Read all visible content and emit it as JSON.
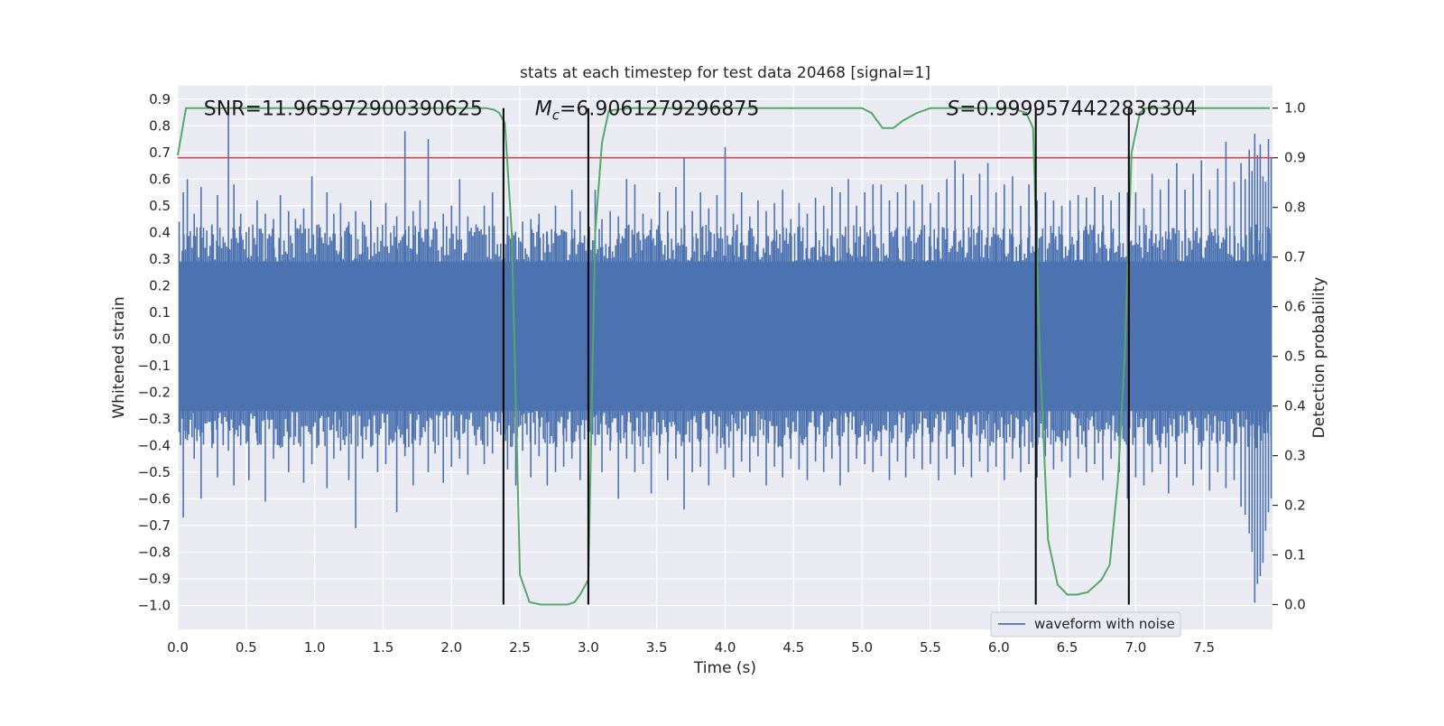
{
  "chart_data": {
    "type": "line",
    "title": "stats at each timestep for test data 20468 [signal=1]",
    "xlabel": "Time (s)",
    "ylabel": "Whitened strain",
    "y2label": "Detection probability",
    "xlim": [
      0.0,
      8.0
    ],
    "ylim": [
      -1.09,
      0.95
    ],
    "y2lim": [
      -0.05,
      1.045
    ],
    "xticks": [
      "0.0",
      "0.5",
      "1.0",
      "1.5",
      "2.0",
      "2.5",
      "3.0",
      "3.5",
      "4.0",
      "4.5",
      "5.0",
      "5.5",
      "6.0",
      "6.5",
      "7.0",
      "7.5"
    ],
    "yticks": [
      "0.9",
      "0.8",
      "0.7",
      "0.6",
      "0.5",
      "0.4",
      "0.3",
      "0.2",
      "0.1",
      "0.0",
      "-0.1",
      "-0.2",
      "-0.3",
      "-0.4",
      "-0.5",
      "-0.6",
      "-0.7",
      "-0.8",
      "-0.9",
      "-1.0"
    ],
    "y2ticks": [
      "1.0",
      "0.9",
      "0.8",
      "0.7",
      "0.6",
      "0.5",
      "0.4",
      "0.3",
      "0.2",
      "0.1",
      "0.0"
    ],
    "grid": true,
    "legend": {
      "placement": "lower-right",
      "entries": [
        "waveform with noise"
      ]
    },
    "annotations": {
      "snr": "SNR=11.965972900390625",
      "mc_prefix": "M",
      "mc_sub": "c",
      "mc_value": "=6.9061279296875",
      "s_prefix": "S",
      "s_value": "=0.9999574422836304"
    },
    "threshold": {
      "axis": "y2",
      "value": 0.9,
      "color": "#c44e52"
    },
    "vertical_lines": [
      2.38,
      3.0,
      6.27,
      6.95
    ],
    "vertical_lines_range_y2": [
      0.0,
      1.0
    ],
    "series": [
      {
        "name": "waveform with noise",
        "axis": "y",
        "color": "#4c72b0",
        "style": "dense-noise",
        "core_envelope": [
          -0.27,
          0.29
        ],
        "spikes": [
          [
            0.01,
            0.44,
            -0.35
          ],
          [
            0.04,
            0.55,
            -0.67
          ],
          [
            0.07,
            0.6,
            -0.38
          ],
          [
            0.12,
            0.47,
            -0.45
          ],
          [
            0.17,
            0.57,
            -0.6
          ],
          [
            0.25,
            0.43,
            -0.41
          ],
          [
            0.29,
            0.54,
            -0.52
          ],
          [
            0.37,
            0.86,
            -0.42
          ],
          [
            0.41,
            0.58,
            -0.55
          ],
          [
            0.46,
            0.47,
            -0.4
          ],
          [
            0.52,
            0.42,
            -0.53
          ],
          [
            0.58,
            0.52,
            -0.38
          ],
          [
            0.64,
            0.47,
            -0.61
          ],
          [
            0.7,
            0.45,
            -0.45
          ],
          [
            0.75,
            0.54,
            -0.41
          ],
          [
            0.81,
            0.48,
            -0.5
          ],
          [
            0.86,
            0.45,
            -0.35
          ],
          [
            0.92,
            0.49,
            -0.54
          ],
          [
            0.98,
            0.61,
            -0.47
          ],
          [
            1.03,
            0.43,
            -0.4
          ],
          [
            1.09,
            0.55,
            -0.56
          ],
          [
            1.14,
            0.47,
            -0.45
          ],
          [
            1.19,
            0.51,
            -0.42
          ],
          [
            1.25,
            0.44,
            -0.53
          ],
          [
            1.3,
            0.48,
            -0.71
          ],
          [
            1.35,
            0.44,
            -0.45
          ],
          [
            1.41,
            0.52,
            -0.4
          ],
          [
            1.46,
            0.42,
            -0.5
          ],
          [
            1.52,
            0.51,
            -0.47
          ],
          [
            1.6,
            0.46,
            -0.65
          ],
          [
            1.66,
            0.78,
            -0.44
          ],
          [
            1.72,
            0.48,
            -0.55
          ],
          [
            1.77,
            0.52,
            -0.4
          ],
          [
            1.83,
            0.75,
            -0.5
          ],
          [
            1.88,
            0.44,
            -0.43
          ],
          [
            1.94,
            0.47,
            -0.54
          ],
          [
            2.0,
            0.5,
            -0.48
          ],
          [
            2.06,
            0.6,
            -0.45
          ],
          [
            2.12,
            0.46,
            -0.51
          ],
          [
            2.18,
            0.43,
            -0.4
          ],
          [
            2.24,
            0.5,
            -0.47
          ],
          [
            2.3,
            0.55,
            -0.43
          ],
          [
            2.36,
            0.33,
            -0.36
          ],
          [
            2.41,
            0.46,
            -0.49
          ],
          [
            2.47,
            0.37,
            -0.55
          ],
          [
            2.52,
            0.44,
            -0.42
          ],
          [
            2.58,
            0.45,
            -0.52
          ],
          [
            2.64,
            0.47,
            -0.44
          ],
          [
            2.7,
            0.4,
            -0.55
          ],
          [
            2.76,
            0.5,
            -0.5
          ],
          [
            2.82,
            0.4,
            -0.48
          ],
          [
            2.88,
            0.56,
            -0.45
          ],
          [
            2.94,
            0.48,
            -0.53
          ],
          [
            3.0,
            0.64,
            -0.61
          ],
          [
            3.05,
            0.56,
            -0.4
          ],
          [
            3.1,
            0.45,
            -0.5
          ],
          [
            3.16,
            0.48,
            -0.42
          ],
          [
            3.22,
            0.46,
            -0.6
          ],
          [
            3.28,
            0.6,
            -0.45
          ],
          [
            3.34,
            0.58,
            -0.5
          ],
          [
            3.4,
            0.47,
            -0.47
          ],
          [
            3.46,
            0.45,
            -0.58
          ],
          [
            3.52,
            0.55,
            -0.43
          ],
          [
            3.58,
            0.48,
            -0.53
          ],
          [
            3.64,
            0.57,
            -0.45
          ],
          [
            3.7,
            0.68,
            -0.64
          ],
          [
            3.76,
            0.48,
            -0.5
          ],
          [
            3.82,
            0.55,
            -0.48
          ],
          [
            3.88,
            0.49,
            -0.55
          ],
          [
            3.94,
            0.54,
            -0.43
          ],
          [
            4.0,
            0.72,
            -0.49
          ],
          [
            4.06,
            0.47,
            -0.52
          ],
          [
            4.12,
            0.55,
            -0.46
          ],
          [
            4.18,
            0.46,
            -0.5
          ],
          [
            4.24,
            0.52,
            -0.44
          ],
          [
            4.3,
            0.48,
            -0.55
          ],
          [
            4.36,
            0.51,
            -0.48
          ],
          [
            4.42,
            0.56,
            -0.52
          ],
          [
            4.48,
            0.45,
            -0.45
          ],
          [
            4.54,
            0.51,
            -0.49
          ],
          [
            4.6,
            0.47,
            -0.53
          ],
          [
            4.66,
            0.53,
            -0.46
          ],
          [
            4.72,
            0.5,
            -0.5
          ],
          [
            4.78,
            0.57,
            -0.45
          ],
          [
            4.84,
            0.55,
            -0.55
          ],
          [
            4.9,
            0.6,
            -0.5
          ],
          [
            4.96,
            0.5,
            -0.45
          ],
          [
            5.02,
            0.55,
            -0.47
          ],
          [
            5.08,
            0.58,
            -0.5
          ],
          [
            5.14,
            0.58,
            -0.44
          ],
          [
            5.2,
            0.52,
            -0.53
          ],
          [
            5.26,
            0.55,
            -0.46
          ],
          [
            5.32,
            0.58,
            -0.52
          ],
          [
            5.38,
            0.52,
            -0.45
          ],
          [
            5.44,
            0.58,
            -0.49
          ],
          [
            5.5,
            0.51,
            -0.47
          ],
          [
            5.56,
            0.55,
            -0.53
          ],
          [
            5.62,
            0.6,
            -0.45
          ],
          [
            5.68,
            0.67,
            -0.51
          ],
          [
            5.74,
            0.62,
            -0.48
          ],
          [
            5.8,
            0.54,
            -0.52
          ],
          [
            5.86,
            0.62,
            -0.46
          ],
          [
            5.92,
            0.66,
            -0.5
          ],
          [
            5.98,
            0.55,
            -0.48
          ],
          [
            6.04,
            0.58,
            -0.53
          ],
          [
            6.1,
            0.61,
            -0.45
          ],
          [
            6.16,
            0.5,
            -0.5
          ],
          [
            6.22,
            0.58,
            -0.47
          ],
          [
            6.28,
            0.52,
            -0.52
          ],
          [
            6.34,
            0.55,
            -0.44
          ],
          [
            6.4,
            0.52,
            -0.49
          ],
          [
            6.46,
            0.5,
            -0.46
          ],
          [
            6.52,
            0.52,
            -0.52
          ],
          [
            6.58,
            0.54,
            -0.45
          ],
          [
            6.64,
            0.53,
            -0.5
          ],
          [
            6.7,
            0.57,
            -0.47
          ],
          [
            6.76,
            0.54,
            -0.53
          ],
          [
            6.82,
            0.52,
            -0.45
          ],
          [
            6.88,
            0.55,
            -0.5
          ],
          [
            6.94,
            0.55,
            -0.6
          ],
          [
            7.0,
            0.55,
            -0.52
          ],
          [
            7.06,
            0.49,
            -0.55
          ],
          [
            7.12,
            0.62,
            -0.5
          ],
          [
            7.18,
            0.56,
            -0.47
          ],
          [
            7.24,
            0.6,
            -0.58
          ],
          [
            7.3,
            0.66,
            -0.52
          ],
          [
            7.36,
            0.56,
            -0.47
          ],
          [
            7.42,
            0.62,
            -0.55
          ],
          [
            7.48,
            0.67,
            -0.49
          ],
          [
            7.54,
            0.56,
            -0.57
          ],
          [
            7.6,
            0.64,
            -0.5
          ],
          [
            7.66,
            0.74,
            -0.56
          ],
          [
            7.72,
            0.59,
            -0.53
          ],
          [
            7.77,
            0.66,
            -0.63
          ],
          [
            7.8,
            0.6,
            -0.66
          ],
          [
            7.83,
            0.71,
            -0.73
          ],
          [
            7.85,
            0.63,
            -0.8
          ],
          [
            7.87,
            0.77,
            -0.99
          ],
          [
            7.89,
            0.69,
            -0.92
          ],
          [
            7.91,
            0.73,
            -0.89
          ],
          [
            7.93,
            0.61,
            -0.84
          ],
          [
            7.95,
            0.59,
            -0.72
          ],
          [
            7.97,
            0.75,
            -0.65
          ],
          [
            7.99,
            0.68,
            -0.6
          ]
        ]
      },
      {
        "name": "",
        "axis": "y2",
        "color": "#55a868",
        "x": [
          0.0,
          0.06,
          0.12,
          2.0,
          2.25,
          2.31,
          2.35,
          2.39,
          2.44,
          2.5,
          2.57,
          2.65,
          2.75,
          2.85,
          2.9,
          2.94,
          3.0,
          3.05,
          3.1,
          3.15,
          3.3,
          4.0,
          4.5,
          5.0,
          5.07,
          5.15,
          5.23,
          5.3,
          5.4,
          5.5,
          5.7,
          6.1,
          6.2,
          6.25,
          6.3,
          6.36,
          6.43,
          6.5,
          6.57,
          6.65,
          6.75,
          6.81,
          6.87,
          6.92,
          6.97,
          7.03,
          7.07,
          7.2,
          7.5,
          7.98
        ],
        "y": [
          0.905,
          1.0,
          1.0,
          1.0,
          1.0,
          0.997,
          0.99,
          0.97,
          0.75,
          0.06,
          0.005,
          0.0,
          0.0,
          0.0,
          0.005,
          0.02,
          0.05,
          0.75,
          0.93,
          0.995,
          1.0,
          1.0,
          1.0,
          1.0,
          0.99,
          0.96,
          0.96,
          0.975,
          0.99,
          1.0,
          1.0,
          1.0,
          0.99,
          0.96,
          0.5,
          0.13,
          0.04,
          0.02,
          0.02,
          0.025,
          0.05,
          0.08,
          0.25,
          0.5,
          0.91,
          0.99,
          1.0,
          1.0,
          1.0,
          1.0
        ]
      }
    ]
  }
}
